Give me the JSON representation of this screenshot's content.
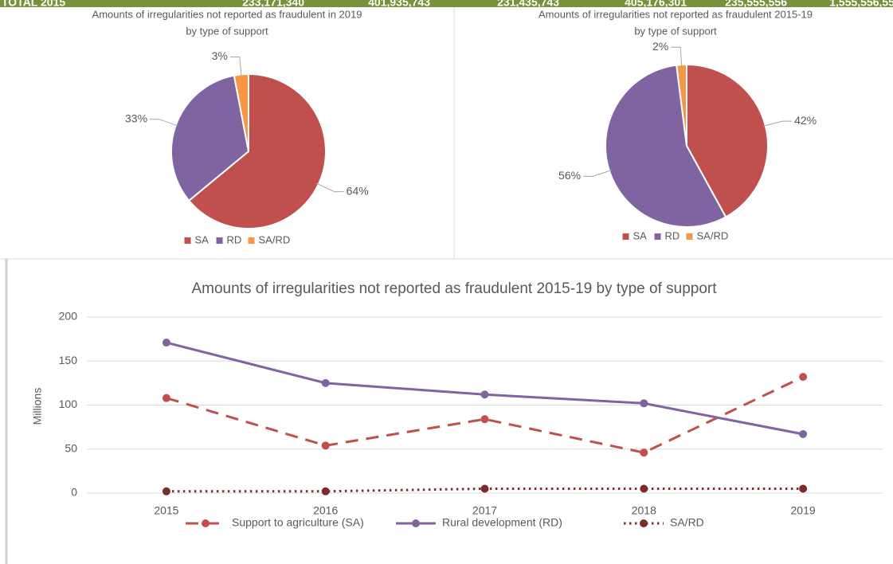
{
  "header": {
    "label": "TOTAL 2015",
    "values": [
      "233,171,340",
      "401,935,743",
      "231,435,743",
      "405,176,301",
      "235,555,556",
      "1,555,556,55"
    ]
  },
  "chart_data": [
    {
      "type": "pie",
      "title": "Amounts of irregularities not reported as fraudulent in 2019",
      "subtitle": "by type of support",
      "categories": [
        "SA",
        "RD",
        "SA/RD"
      ],
      "values": [
        64,
        33,
        3
      ],
      "value_labels": [
        "64%",
        "33%",
        "3%"
      ],
      "colors": [
        "#c0504d",
        "#8064a2",
        "#f79646"
      ],
      "legend": "bottom"
    },
    {
      "type": "pie",
      "title": "Amounts of irregularities not reported as fraudulent 2015-19",
      "subtitle": "by type of support",
      "categories": [
        "SA",
        "RD",
        "SA/RD"
      ],
      "values": [
        42,
        56,
        2
      ],
      "value_labels": [
        "42%",
        "56%",
        "2%"
      ],
      "colors": [
        "#c0504d",
        "#8064a2",
        "#f79646"
      ],
      "legend": "bottom"
    },
    {
      "type": "line",
      "title": "Amounts of irregularities not reported as fraudulent 2015-19 by type of support",
      "ylabel": "Millions",
      "categories": [
        "2015",
        "2016",
        "2017",
        "2018",
        "2019"
      ],
      "series": [
        {
          "name": "Support to agriculture (SA)",
          "color": "#c0504d",
          "style": "dashed",
          "values": [
            108,
            54,
            84,
            46,
            132
          ]
        },
        {
          "name": "Rural development (RD)",
          "color": "#8064a2",
          "style": "solid",
          "values": [
            171,
            125,
            112,
            102,
            67
          ]
        },
        {
          "name": "SA/RD",
          "color": "#7b2c2a",
          "style": "dotted",
          "values": [
            2,
            2,
            5,
            5,
            5
          ]
        }
      ],
      "ylim": [
        0,
        200
      ],
      "yticks": [
        0,
        50,
        100,
        150,
        200
      ],
      "grid": true,
      "legend": "bottom"
    }
  ]
}
